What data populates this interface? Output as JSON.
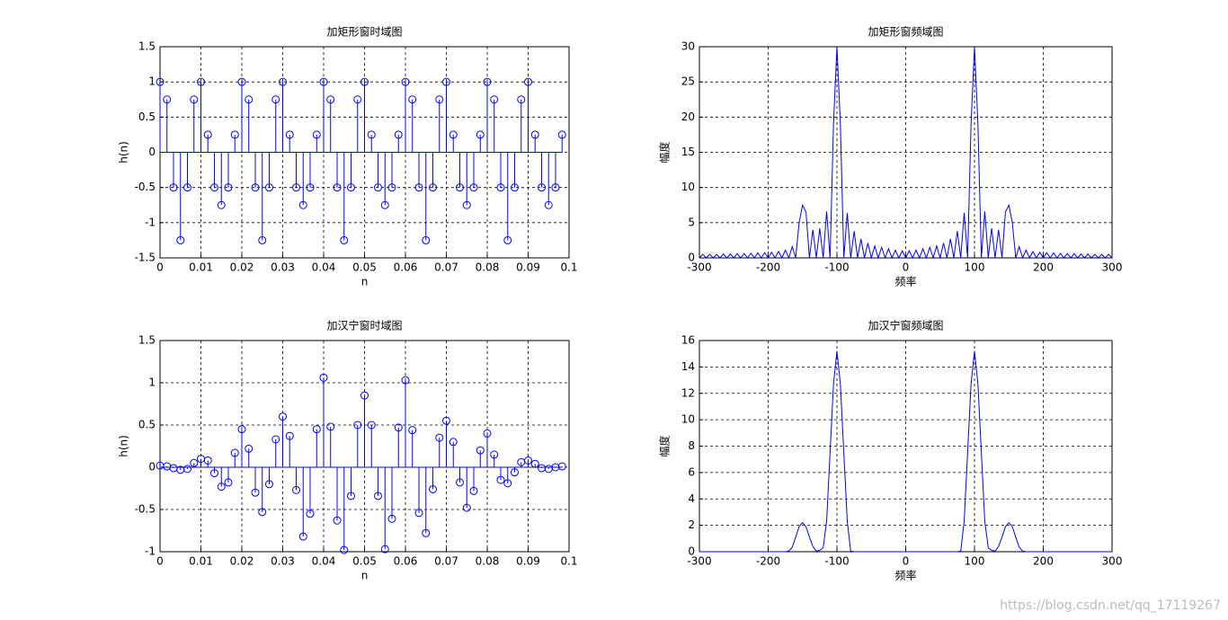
{
  "chart_data": [
    {
      "type": "stem",
      "title": "加矩形窗时域图",
      "xlabel": "n",
      "ylabel": "h(n)",
      "color": "#0000ff",
      "grid": true,
      "xlim": [
        0,
        0.1
      ],
      "xticks": [
        0,
        0.01,
        0.02,
        0.03,
        0.04,
        0.05,
        0.06,
        0.07,
        0.08,
        0.09,
        0.1
      ],
      "ylim": [
        -1.5,
        1.5
      ],
      "yticks": [
        -1.5,
        -1,
        -0.5,
        0,
        0.5,
        1,
        1.5
      ],
      "x": [
        0,
        0.0017,
        0.0033,
        0.005,
        0.0067,
        0.0083,
        0.01,
        0.0117,
        0.0133,
        0.015,
        0.0167,
        0.0183,
        0.02,
        0.0217,
        0.0233,
        0.025,
        0.0267,
        0.0283,
        0.03,
        0.0317,
        0.0333,
        0.035,
        0.0367,
        0.0383,
        0.04,
        0.0417,
        0.0433,
        0.045,
        0.0467,
        0.0483,
        0.05,
        0.0517,
        0.0533,
        0.055,
        0.0567,
        0.0583,
        0.06,
        0.0617,
        0.0633,
        0.065,
        0.0667,
        0.0683,
        0.07,
        0.0717,
        0.0733,
        0.075,
        0.0767,
        0.0783,
        0.08,
        0.0817,
        0.0833,
        0.085,
        0.0867,
        0.0883,
        0.09,
        0.0917,
        0.0933,
        0.095,
        0.0967,
        0.0983
      ],
      "values": [
        1,
        0.75,
        -0.5,
        -1.25,
        -0.5,
        0.75,
        1,
        0.25,
        -0.5,
        -0.75,
        -0.5,
        0.25,
        1,
        0.75,
        -0.5,
        -1.25,
        -0.5,
        0.75,
        1,
        0.25,
        -0.5,
        -0.75,
        -0.5,
        0.25,
        1,
        0.75,
        -0.5,
        -1.25,
        -0.5,
        0.75,
        1,
        0.25,
        -0.5,
        -0.75,
        -0.5,
        0.25,
        1,
        0.75,
        -0.5,
        -1.25,
        -0.5,
        0.75,
        1,
        0.25,
        -0.5,
        -0.75,
        -0.5,
        0.25,
        1,
        0.75,
        -0.5,
        -1.25,
        -0.5,
        0.75,
        1,
        0.25,
        -0.5,
        -0.75,
        -0.5,
        0.25
      ]
    },
    {
      "type": "line",
      "title": "加矩形窗频域图",
      "xlabel": "频率",
      "ylabel": "幅度",
      "color": "#0000ff",
      "grid": true,
      "xlim": [
        -300,
        300
      ],
      "xticks": [
        -300,
        -200,
        -100,
        0,
        100,
        200,
        300
      ],
      "ylim": [
        0,
        30
      ],
      "yticks": [
        0,
        5,
        10,
        15,
        20,
        25,
        30
      ],
      "x": [
        -300,
        -295,
        -290,
        -285,
        -280,
        -275,
        -270,
        -265,
        -260,
        -255,
        -250,
        -245,
        -240,
        -235,
        -230,
        -225,
        -220,
        -215,
        -210,
        -205,
        -200,
        -195,
        -190,
        -185,
        -180,
        -175,
        -170,
        -165,
        -160,
        -155,
        -150,
        -145,
        -140,
        -135,
        -130,
        -125,
        -120,
        -115,
        -110,
        -105,
        -100,
        -95,
        -90,
        -85,
        -80,
        -75,
        -70,
        -65,
        -60,
        -55,
        -50,
        -45,
        -40,
        -35,
        -30,
        -25,
        -20,
        -15,
        -10,
        -5,
        0,
        5,
        10,
        15,
        20,
        25,
        30,
        35,
        40,
        45,
        50,
        55,
        60,
        65,
        70,
        75,
        80,
        85,
        90,
        95,
        100,
        105,
        110,
        115,
        120,
        125,
        130,
        135,
        140,
        145,
        150,
        155,
        160,
        165,
        170,
        175,
        180,
        185,
        190,
        195,
        200,
        205,
        210,
        215,
        220,
        225,
        230,
        235,
        240,
        245,
        250,
        255,
        260,
        265,
        270,
        275,
        280,
        285,
        290,
        295,
        300
      ],
      "values": [
        0,
        0.5,
        0,
        0.5,
        0,
        0.5,
        0,
        0.55,
        0,
        0.55,
        0,
        0.6,
        0,
        0.6,
        0,
        0.65,
        0,
        0.7,
        0,
        0.75,
        0,
        0.8,
        0,
        0.9,
        0,
        1.1,
        0,
        1.6,
        0,
        5.0,
        7.5,
        6.5,
        0,
        4.0,
        0,
        4.2,
        0,
        6.6,
        0,
        19,
        30,
        19,
        0,
        6.4,
        0,
        3.8,
        0,
        2.7,
        0,
        2.1,
        0,
        1.7,
        0,
        1.5,
        0,
        1.3,
        0,
        1.1,
        0,
        1.0,
        0,
        1.0,
        0,
        1.1,
        0,
        1.3,
        0,
        1.5,
        0,
        1.7,
        0,
        2.1,
        0,
        2.7,
        0,
        3.8,
        0,
        6.4,
        0,
        19,
        30,
        19,
        0,
        6.6,
        0,
        4.2,
        0,
        4.0,
        0,
        6.5,
        7.5,
        5.0,
        0,
        1.6,
        0,
        1.1,
        0,
        0.9,
        0,
        0.8,
        0,
        0.75,
        0,
        0.7,
        0,
        0.65,
        0,
        0.6,
        0,
        0.6,
        0,
        0.55,
        0,
        0.55,
        0,
        0.5,
        0,
        0.5,
        0,
        0.5,
        0
      ]
    },
    {
      "type": "stem",
      "title": "加汉宁窗时域图",
      "xlabel": "n",
      "ylabel": "h(n)",
      "color": "#0000ff",
      "grid": true,
      "xlim": [
        0,
        0.1
      ],
      "xticks": [
        0,
        0.01,
        0.02,
        0.03,
        0.04,
        0.05,
        0.06,
        0.07,
        0.08,
        0.09,
        0.1
      ],
      "ylim": [
        -1,
        1.5
      ],
      "yticks": [
        -1,
        -0.5,
        0,
        0.5,
        1,
        1.5
      ],
      "x": [
        0,
        0.0017,
        0.0033,
        0.005,
        0.0067,
        0.0083,
        0.01,
        0.0117,
        0.0133,
        0.015,
        0.0167,
        0.0183,
        0.02,
        0.0217,
        0.0233,
        0.025,
        0.0267,
        0.0283,
        0.03,
        0.0317,
        0.0333,
        0.035,
        0.0367,
        0.0383,
        0.04,
        0.0417,
        0.0433,
        0.045,
        0.0467,
        0.0483,
        0.05,
        0.0517,
        0.0533,
        0.055,
        0.0567,
        0.0583,
        0.06,
        0.0617,
        0.0633,
        0.065,
        0.0667,
        0.0683,
        0.07,
        0.0717,
        0.0733,
        0.075,
        0.0767,
        0.0783,
        0.08,
        0.0817,
        0.0833,
        0.085,
        0.0867,
        0.0883,
        0.09,
        0.0917,
        0.0933,
        0.095,
        0.0967,
        0.0983
      ],
      "values": [
        0.02,
        0.01,
        -0.01,
        -0.03,
        -0.02,
        0.05,
        0.1,
        0.08,
        -0.07,
        -0.23,
        -0.18,
        0.17,
        0.45,
        0.22,
        -0.3,
        -0.53,
        -0.2,
        0.33,
        0.6,
        0.37,
        -0.27,
        -0.82,
        -0.55,
        0.45,
        1.06,
        0.48,
        -0.63,
        -0.98,
        -0.34,
        0.5,
        0.85,
        0.5,
        -0.34,
        -0.97,
        -0.61,
        0.47,
        1.03,
        0.44,
        -0.54,
        -0.78,
        -0.26,
        0.35,
        0.55,
        0.3,
        -0.18,
        -0.48,
        -0.28,
        0.2,
        0.4,
        0.15,
        -0.15,
        -0.19,
        -0.06,
        0.06,
        0.08,
        0.04,
        -0.01,
        -0.02,
        0,
        0.01
      ]
    },
    {
      "type": "line",
      "title": "加汉宁窗频域图",
      "xlabel": "频率",
      "ylabel": "幅度",
      "color": "#0000ff",
      "grid": true,
      "xlim": [
        -300,
        300
      ],
      "xticks": [
        -300,
        -200,
        -100,
        0,
        100,
        200,
        300
      ],
      "ylim": [
        0,
        16
      ],
      "yticks": [
        0,
        2,
        4,
        6,
        8,
        10,
        12,
        14,
        16
      ],
      "x": [
        -300,
        -295,
        -290,
        -285,
        -280,
        -275,
        -270,
        -265,
        -260,
        -255,
        -250,
        -245,
        -240,
        -235,
        -230,
        -225,
        -220,
        -215,
        -210,
        -205,
        -200,
        -195,
        -190,
        -185,
        -180,
        -175,
        -170,
        -165,
        -160,
        -155,
        -150,
        -145,
        -140,
        -135,
        -130,
        -125,
        -120,
        -115,
        -110,
        -105,
        -100,
        -95,
        -90,
        -85,
        -80,
        -75,
        -70,
        -65,
        -60,
        -55,
        -50,
        -45,
        -40,
        -35,
        -30,
        -25,
        -20,
        -15,
        -10,
        -5,
        0,
        5,
        10,
        15,
        20,
        25,
        30,
        35,
        40,
        45,
        50,
        55,
        60,
        65,
        70,
        75,
        80,
        85,
        90,
        95,
        100,
        105,
        110,
        115,
        120,
        125,
        130,
        135,
        140,
        145,
        150,
        155,
        160,
        165,
        170,
        175,
        180,
        185,
        190,
        195,
        200,
        205,
        210,
        215,
        220,
        225,
        230,
        235,
        240,
        245,
        250,
        255,
        260,
        265,
        270,
        275,
        280,
        285,
        290,
        295,
        300
      ],
      "values": [
        0,
        0,
        0,
        0,
        0,
        0,
        0,
        0,
        0,
        0,
        0,
        0,
        0,
        0,
        0,
        0,
        0,
        0,
        0,
        0,
        0,
        0,
        0,
        0,
        0,
        0,
        0.05,
        0.35,
        1.1,
        1.9,
        2.2,
        1.9,
        1.1,
        0.4,
        0.05,
        0.1,
        0.3,
        2.3,
        7.5,
        12.7,
        15.2,
        12.7,
        7.5,
        2.3,
        0.05,
        0,
        0,
        0,
        0,
        0,
        0,
        0,
        0,
        0,
        0,
        0,
        0,
        0,
        0,
        0,
        0,
        0,
        0,
        0,
        0,
        0,
        0,
        0,
        0,
        0,
        0,
        0,
        0,
        0,
        0,
        0,
        0.05,
        2.3,
        7.5,
        12.7,
        15.2,
        12.7,
        7.5,
        2.3,
        0.3,
        0.1,
        0.05,
        0.4,
        1.1,
        1.9,
        2.2,
        1.9,
        1.1,
        0.35,
        0.05,
        0,
        0,
        0,
        0,
        0,
        0,
        0,
        0,
        0,
        0,
        0,
        0,
        0,
        0,
        0,
        0,
        0,
        0,
        0,
        0,
        0,
        0,
        0,
        0,
        0,
        0
      ]
    }
  ],
  "watermark": "https://blog.csdn.net/qq_17119267"
}
